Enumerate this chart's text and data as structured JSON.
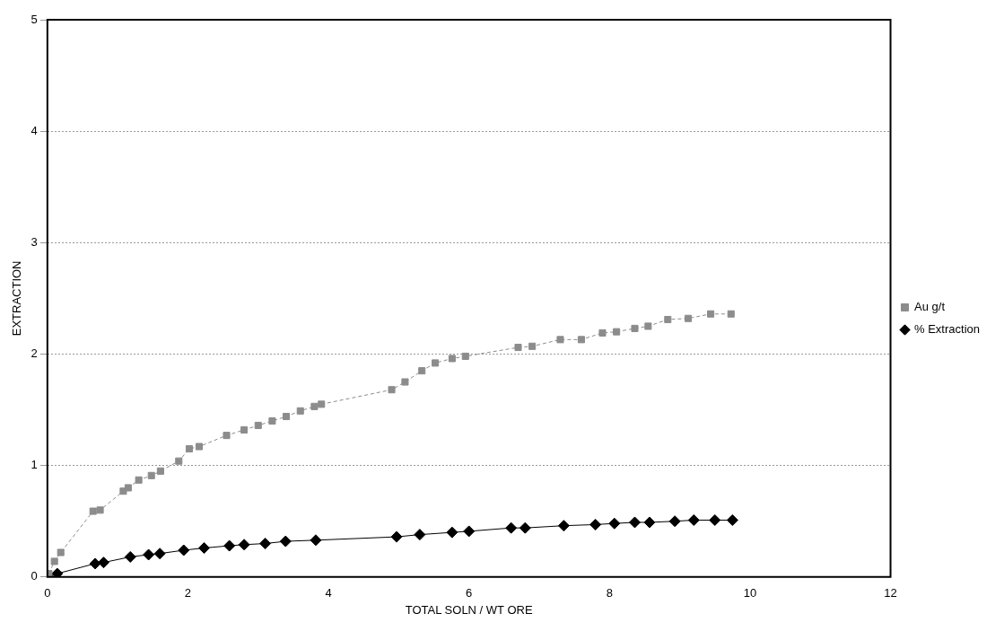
{
  "chart_data": {
    "type": "line",
    "xlabel": "TOTAL SOLN / WT ORE",
    "ylabel": "EXTRACTION",
    "xlim": [
      0,
      12
    ],
    "xticks": [
      0,
      2,
      4,
      6,
      8,
      10,
      12
    ],
    "ylim": [
      0,
      5
    ],
    "yticks": [
      0,
      1,
      2,
      3,
      4,
      5
    ],
    "grid": "y",
    "legend": "right",
    "series": [
      {
        "name": "Au g/t",
        "color": "#8c8c8c",
        "marker": "square",
        "line_style": "dashed",
        "x": [
          0.02,
          0.1,
          0.19,
          0.65,
          0.75,
          1.08,
          1.15,
          1.3,
          1.48,
          1.61,
          1.87,
          2.02,
          2.16,
          2.55,
          2.8,
          3.0,
          3.2,
          3.4,
          3.6,
          3.8,
          3.9,
          4.9,
          5.09,
          5.33,
          5.52,
          5.76,
          5.95,
          6.7,
          6.9,
          7.3,
          7.6,
          7.9,
          8.1,
          8.36,
          8.55,
          8.83,
          9.12,
          9.44,
          9.73
        ],
        "values": [
          0.03,
          0.14,
          0.22,
          0.59,
          0.6,
          0.77,
          0.8,
          0.87,
          0.91,
          0.95,
          1.04,
          1.15,
          1.17,
          1.27,
          1.32,
          1.36,
          1.4,
          1.44,
          1.49,
          1.53,
          1.55,
          1.68,
          1.75,
          1.85,
          1.92,
          1.96,
          1.98,
          2.06,
          2.07,
          2.13,
          2.13,
          2.19,
          2.2,
          2.23,
          2.25,
          2.31,
          2.32,
          2.36,
          2.36
        ]
      },
      {
        "name": "% Extraction",
        "color": "#000000",
        "marker": "diamond",
        "line_style": "solid",
        "x": [
          0.0,
          0.14,
          0.68,
          0.8,
          1.18,
          1.44,
          1.6,
          1.94,
          2.23,
          2.59,
          2.8,
          3.1,
          3.39,
          3.82,
          4.97,
          5.3,
          5.76,
          6.0,
          6.6,
          6.8,
          7.35,
          7.8,
          8.07,
          8.36,
          8.57,
          8.93,
          9.2,
          9.5,
          9.75
        ],
        "values": [
          0.01,
          0.03,
          0.12,
          0.13,
          0.18,
          0.2,
          0.21,
          0.24,
          0.26,
          0.28,
          0.29,
          0.3,
          0.32,
          0.33,
          0.36,
          0.38,
          0.4,
          0.41,
          0.44,
          0.44,
          0.46,
          0.47,
          0.48,
          0.49,
          0.49,
          0.5,
          0.51,
          0.51,
          0.51
        ]
      }
    ]
  }
}
